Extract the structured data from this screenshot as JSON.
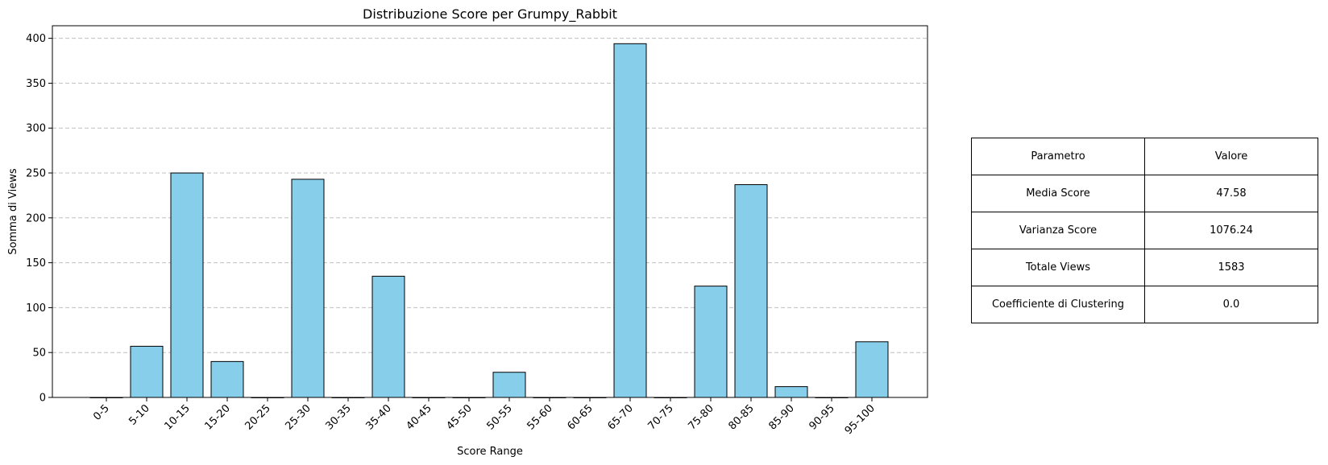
{
  "chart_data": {
    "type": "bar",
    "title": "Distribuzione Score per Grumpy_Rabbit",
    "xlabel": "Score Range",
    "ylabel": "Somma di Views",
    "categories": [
      "0-5",
      "5-10",
      "10-15",
      "15-20",
      "20-25",
      "25-30",
      "30-35",
      "35-40",
      "40-45",
      "45-50",
      "50-55",
      "55-60",
      "60-65",
      "65-70",
      "70-75",
      "75-80",
      "80-85",
      "85-90",
      "90-95",
      "95-100"
    ],
    "values": [
      0,
      57,
      250,
      40,
      0,
      243,
      0,
      135,
      0,
      0,
      28,
      0,
      0,
      394,
      0,
      124,
      237,
      12,
      0,
      62
    ],
    "ylim": [
      0,
      414
    ],
    "yticks": [
      0,
      50,
      100,
      150,
      200,
      250,
      300,
      350,
      400
    ],
    "grid": "y-dashed",
    "bar_color": "#87CEEB",
    "edge_color": "#000000"
  },
  "table": {
    "header": [
      "Parametro",
      "Valore"
    ],
    "rows": [
      [
        "Media Score",
        "47.58"
      ],
      [
        "Varianza Score",
        "1076.24"
      ],
      [
        "Totale Views",
        "1583"
      ],
      [
        "Coefficiente di Clustering",
        "0.0"
      ]
    ]
  }
}
